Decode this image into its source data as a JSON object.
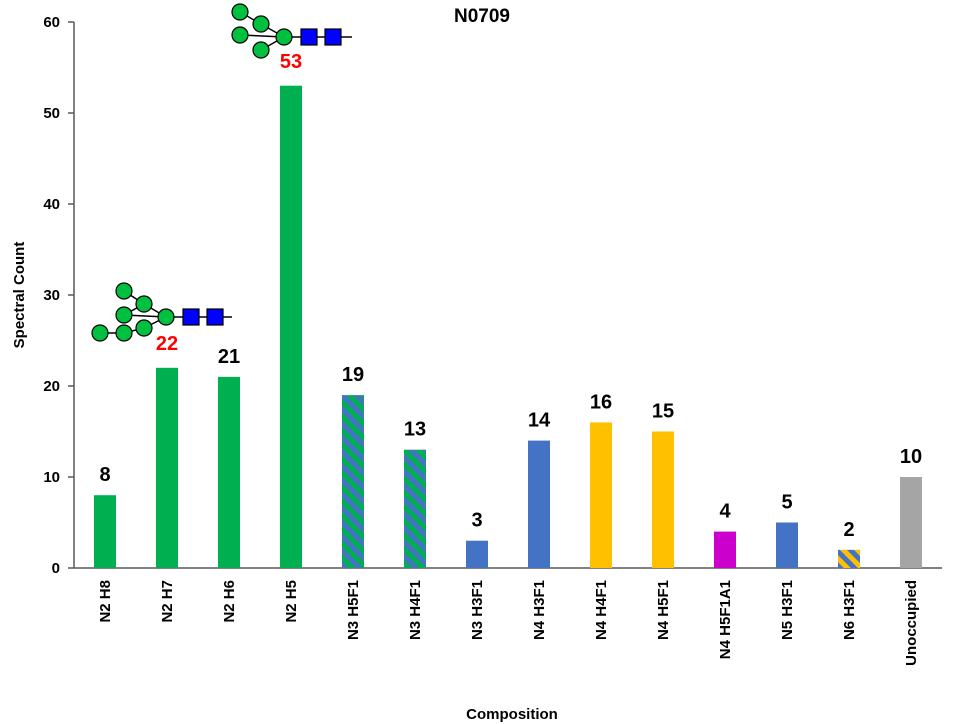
{
  "chart_data": {
    "type": "bar",
    "title": "N0709",
    "xlabel": "Composition",
    "ylabel": "Spectral Count",
    "ylim": [
      0,
      60
    ],
    "yticks": [
      0,
      10,
      20,
      30,
      40,
      50,
      60
    ],
    "grid": false,
    "legend": "none",
    "categories": [
      "N2 H8",
      "N2 H7",
      "N2 H6",
      "N2 H5",
      "N3 H5F1",
      "N3 H4F1",
      "N3 H3F1",
      "N4 H3F1",
      "N4 H4F1",
      "N4 H5F1",
      "N4 H5F1A1",
      "N5 H3F1",
      "N6 H3F1",
      "Unoccupied"
    ],
    "values": [
      8,
      22,
      21,
      53,
      19,
      13,
      3,
      14,
      16,
      15,
      4,
      5,
      2,
      10
    ],
    "bar_fills": [
      "green",
      "green",
      "green",
      "green",
      "green-blue-stripe",
      "green-blue-stripe",
      "blue",
      "blue",
      "yellow",
      "yellow",
      "magenta",
      "blue",
      "blue-yellow-stripe",
      "gray"
    ],
    "highlighted_labels": [
      1,
      3
    ],
    "glycan_icons": [
      1,
      3
    ]
  },
  "colors": {
    "green": "#00b050",
    "blue": "#4472c4",
    "yellow": "#ffc000",
    "magenta": "#cc00cc",
    "gray": "#a5a5a5",
    "label": "#000000",
    "highlight_label": "#ff0000",
    "glycan_mannose": "#00c040",
    "glycan_glcnac": "#0000ff"
  }
}
